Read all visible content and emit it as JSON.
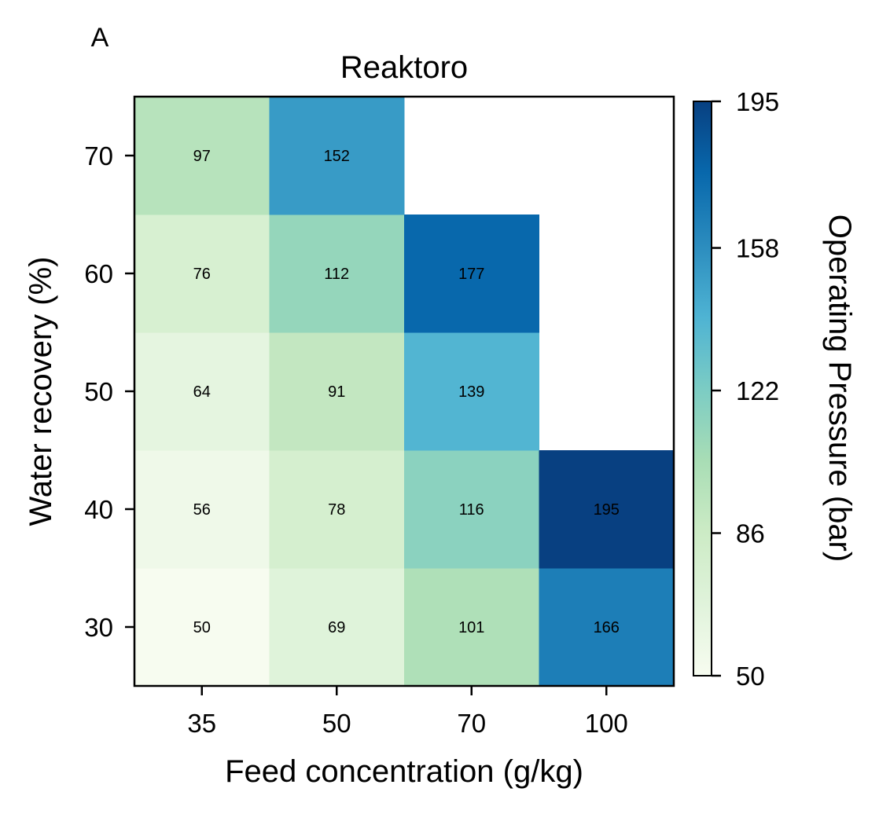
{
  "panel_label": "A",
  "chart_data": {
    "type": "heatmap",
    "title": "Reaktoro",
    "xlabel": "Feed concentration (g/kg)",
    "ylabel": "Water recovery (%)",
    "x_categories": [
      "35",
      "50",
      "70",
      "100"
    ],
    "y_categories": [
      "30",
      "40",
      "50",
      "60",
      "70"
    ],
    "values": [
      [
        50,
        69,
        101,
        166
      ],
      [
        56,
        78,
        116,
        195
      ],
      [
        64,
        91,
        139,
        null
      ],
      [
        76,
        112,
        177,
        null
      ],
      [
        97,
        152,
        null,
        null
      ]
    ],
    "colorbar": {
      "label": "Operating Pressure (bar)",
      "min": 50,
      "max": 195,
      "ticks": [
        "50",
        "86",
        "122",
        "158",
        "195"
      ],
      "colormap": "GnBu",
      "stops": [
        "#f7fcf0",
        "#e0f3db",
        "#ccebc5",
        "#a8ddb5",
        "#7bccc4",
        "#4eb3d3",
        "#2b8cbe",
        "#0868ac",
        "#084081"
      ]
    }
  }
}
